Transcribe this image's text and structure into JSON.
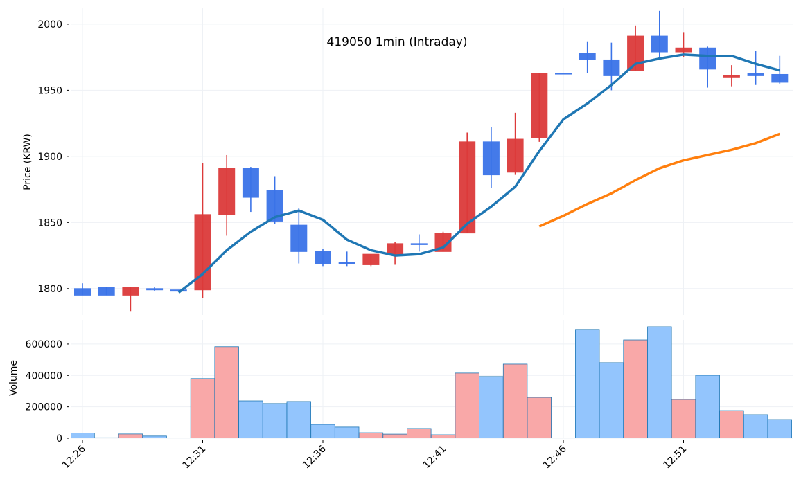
{
  "chart_data": {
    "type": "candlestick",
    "title": "419050 1min (Intraday)",
    "xlabel": "",
    "price_ylabel": "Price (KRW)",
    "volume_ylabel": "Volume",
    "price_ylim": [
      1780,
      2012
    ],
    "volume_ylim": [
      0,
      754000
    ],
    "price_ticks": [
      1800,
      1850,
      1900,
      1950,
      2000
    ],
    "volume_ticks": [
      0,
      200000,
      400000,
      600000
    ],
    "x_tick_labels": [
      "12:26",
      "12:31",
      "12:36",
      "12:41",
      "12:46",
      "12:51"
    ],
    "x_tick_index": [
      0,
      5,
      10,
      15,
      20,
      25
    ],
    "grid": true,
    "colors": {
      "up": "#dc3a3a",
      "down": "#3a73e8",
      "vol_up": "#f9a8a8",
      "vol_down": "#93c5fd",
      "ma_short": "#1f77b4",
      "ma_long": "#ff7f0e"
    },
    "times": [
      "12:26",
      "12:27",
      "12:28",
      "12:29",
      "12:30",
      "12:31",
      "12:32",
      "12:33",
      "12:34",
      "12:35",
      "12:36",
      "12:37",
      "12:38",
      "12:39",
      "12:40",
      "12:41",
      "12:42",
      "12:43",
      "12:44",
      "12:45",
      "12:46",
      "12:47",
      "12:48",
      "12:49",
      "12:50",
      "12:51",
      "12:52",
      "12:53",
      "12:54",
      "12:55"
    ],
    "open": [
      1800,
      1801,
      1795,
      1800,
      1799,
      1799,
      1856,
      1891,
      1874,
      1848,
      1828,
      1820,
      1818,
      1826,
      1834,
      1828,
      1842,
      1911,
      1888,
      1914,
      1963,
      1978,
      1973,
      1965,
      1991,
      1979,
      1982,
      1960,
      1963,
      1962
    ],
    "high": [
      1804,
      1801,
      1801,
      1801,
      1799,
      1895,
      1901,
      1892,
      1885,
      1861,
      1830,
      1828,
      1826,
      1835,
      1841,
      1843,
      1918,
      1922,
      1933,
      1963,
      1963,
      1987,
      1986,
      1999,
      2010,
      1994,
      1983,
      1969,
      1980,
      1976
    ],
    "low": [
      1795,
      1795,
      1783,
      1798,
      1798,
      1793,
      1840,
      1858,
      1849,
      1819,
      1817,
      1817,
      1817,
      1818,
      1828,
      1828,
      1842,
      1876,
      1886,
      1911,
      1963,
      1963,
      1950,
      1965,
      1975,
      1975,
      1952,
      1953,
      1954,
      1955
    ],
    "close": [
      1795,
      1795,
      1801,
      1799,
      1798,
      1856,
      1891,
      1869,
      1851,
      1828,
      1819,
      1819,
      1826,
      1834,
      1834,
      1842,
      1911,
      1886,
      1913,
      1963,
      1963,
      1973,
      1961,
      1991,
      1979,
      1982,
      1966,
      1961,
      1961,
      1956
    ],
    "volume": [
      33000,
      3000,
      27000,
      14000,
      0,
      380000,
      583000,
      238000,
      221000,
      234000,
      88000,
      71000,
      35000,
      26000,
      62000,
      22000,
      415000,
      393000,
      472000,
      260000,
      0,
      693000,
      481000,
      626000,
      710000,
      247000,
      401000,
      176000,
      150000,
      119000
    ],
    "ma_short": [
      null,
      null,
      null,
      null,
      1797,
      1811,
      1829,
      1843,
      1854,
      1859,
      1852,
      1837,
      1829,
      1825,
      1826,
      1831,
      1849,
      1862,
      1877,
      1904,
      1928,
      1940,
      1954,
      1970,
      1974,
      1977,
      1976,
      1976,
      1970,
      1965
    ],
    "ma_long": [
      null,
      null,
      null,
      null,
      null,
      null,
      null,
      null,
      null,
      null,
      null,
      null,
      null,
      null,
      null,
      null,
      null,
      null,
      null,
      1847,
      1855,
      1864,
      1872,
      1882,
      1891,
      1897,
      1901,
      1905,
      1910,
      1917
    ]
  }
}
